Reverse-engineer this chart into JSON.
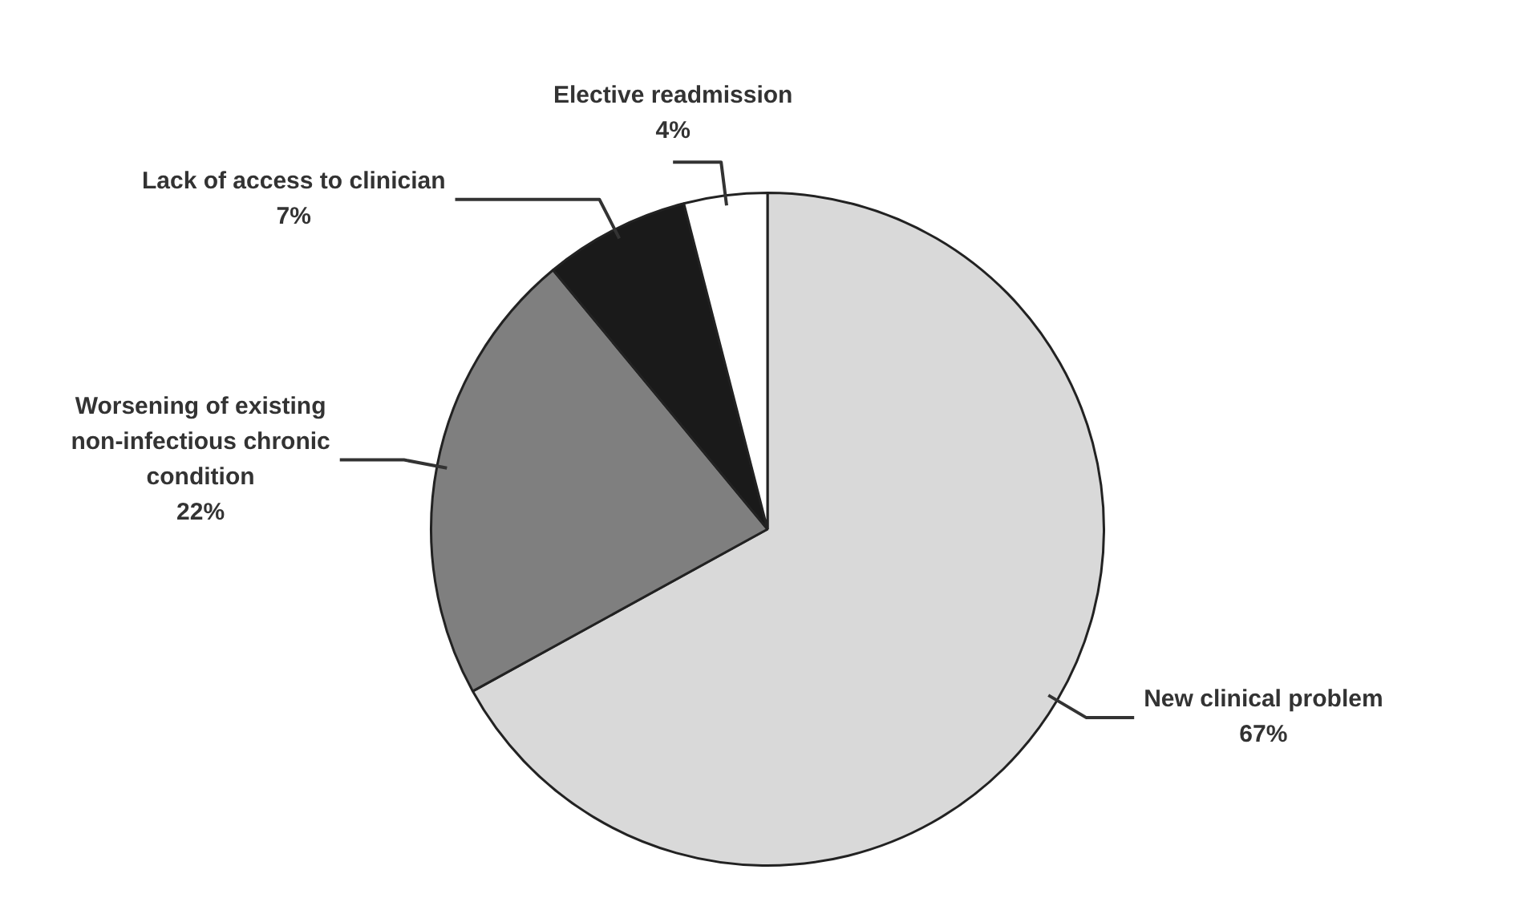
{
  "chart_data": {
    "type": "pie",
    "categories": [
      "New clinical problem",
      "Worsening of existing non-infectious chronic condition",
      "Lack of access to clinician",
      "Elective readmission"
    ],
    "values": [
      67,
      22,
      7,
      4
    ],
    "colors": [
      "#d9d9d9",
      "#7f7f7f",
      "#1a1a1a",
      "#ffffff"
    ],
    "value_labels": [
      "67%",
      "22%",
      "7%",
      "4%"
    ],
    "legend": false
  }
}
